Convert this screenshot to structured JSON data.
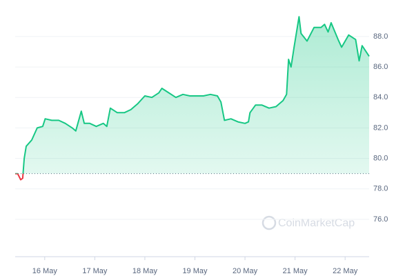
{
  "chart_data": {
    "type": "line",
    "watermark": "CoinMarketCap",
    "x": [
      15.41,
      15.46,
      15.52,
      15.56,
      15.59,
      15.63,
      15.74,
      15.85,
      15.96,
      16.01,
      16.14,
      16.28,
      16.41,
      16.55,
      16.62,
      16.73,
      16.79,
      16.9,
      17.03,
      17.17,
      17.24,
      17.31,
      17.45,
      17.59,
      17.72,
      17.86,
      18.0,
      18.14,
      18.28,
      18.34,
      18.48,
      18.62,
      18.76,
      18.9,
      19.03,
      19.17,
      19.31,
      19.45,
      19.52,
      19.59,
      19.72,
      19.86,
      20.0,
      20.07,
      20.1,
      20.21,
      20.34,
      20.48,
      20.62,
      20.76,
      20.83,
      20.87,
      20.92,
      20.98,
      21.08,
      21.12,
      21.24,
      21.38,
      21.52,
      21.59,
      21.66,
      21.72,
      21.86,
      21.93,
      22.07,
      22.21,
      22.28,
      22.34,
      22.48
    ],
    "series": [
      {
        "color": "#16c784",
        "below_color": "#ea3943",
        "values": [
          79.0,
          79.0,
          78.6,
          78.7,
          80.0,
          80.8,
          81.2,
          82.0,
          82.1,
          82.6,
          82.5,
          82.5,
          82.3,
          82.0,
          81.8,
          83.1,
          82.3,
          82.3,
          82.1,
          82.3,
          82.1,
          83.3,
          83.0,
          83.0,
          83.2,
          83.6,
          84.1,
          84.0,
          84.3,
          84.6,
          84.3,
          84.0,
          84.2,
          84.1,
          84.1,
          84.1,
          84.2,
          84.1,
          83.7,
          82.5,
          82.6,
          82.4,
          82.3,
          82.4,
          83.0,
          83.5,
          83.5,
          83.3,
          83.4,
          83.8,
          84.2,
          86.5,
          86.0,
          87.3,
          89.3,
          88.2,
          87.7,
          88.6,
          88.6,
          88.8,
          88.3,
          88.9,
          87.8,
          87.3,
          88.1,
          87.8,
          86.4,
          87.4,
          86.7
        ]
      }
    ],
    "baseline": 79.0,
    "xlim": [
      15.41,
      22.48
    ],
    "xticks": [
      {
        "value": 16,
        "label": "16 May"
      },
      {
        "value": 17,
        "label": "17 May"
      },
      {
        "value": 18,
        "label": "18 May"
      },
      {
        "value": 19,
        "label": "19 May"
      },
      {
        "value": 20,
        "label": "20 May"
      },
      {
        "value": 21,
        "label": "21 May"
      },
      {
        "value": 22,
        "label": "22 May"
      }
    ],
    "ylim": [
      73.55,
      90.17
    ],
    "yticks": [
      {
        "value": 76,
        "label": "76.0"
      },
      {
        "value": 78,
        "label": "78.0"
      },
      {
        "value": 80,
        "label": "80.0"
      },
      {
        "value": 82,
        "label": "82.0"
      },
      {
        "value": 84,
        "label": "84.0"
      },
      {
        "value": 86,
        "label": "86.0"
      },
      {
        "value": 88,
        "label": "88.0"
      }
    ],
    "grid": true
  }
}
